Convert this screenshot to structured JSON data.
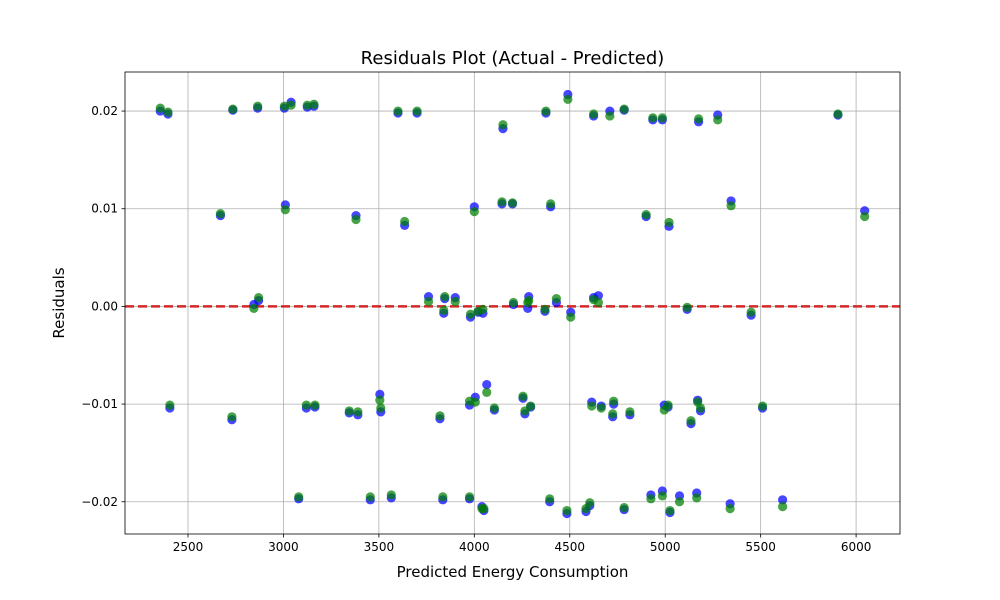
{
  "chart_data": {
    "type": "scatter",
    "title": "Residuals Plot (Actual - Predicted)",
    "xlabel": "Predicted Energy Consumption",
    "ylabel": "Residuals",
    "xlim": [
      2170,
      6230
    ],
    "ylim": [
      -0.0233,
      0.024
    ],
    "xticks": [
      2500,
      3000,
      3500,
      4000,
      4500,
      5000,
      5500,
      6000
    ],
    "xtick_labels": [
      "2500",
      "3000",
      "3500",
      "4000",
      "4500",
      "5000",
      "5500",
      "6000"
    ],
    "yticks": [
      -0.02,
      -0.01,
      0.0,
      0.01,
      0.02
    ],
    "ytick_labels": [
      "−0.02",
      "−0.01",
      "0.00",
      "0.01",
      "0.02"
    ],
    "grid": true,
    "reference_line": {
      "y": 0,
      "color": "#d62728",
      "style": "dashed"
    },
    "series": [
      {
        "color": "#0000ff",
        "points": [
          [
            2355,
            0.02
          ],
          [
            2395,
            0.0197
          ],
          [
            2735,
            0.0201
          ],
          [
            2865,
            0.0203
          ],
          [
            3005,
            0.0203
          ],
          [
            3040,
            0.0209
          ],
          [
            3125,
            0.0204
          ],
          [
            3160,
            0.0205
          ],
          [
            3600,
            0.0198
          ],
          [
            3700,
            0.0198
          ],
          [
            4150,
            0.0182
          ],
          [
            4375,
            0.0198
          ],
          [
            4490,
            0.0217
          ],
          [
            4625,
            0.0195
          ],
          [
            4710,
            0.02
          ],
          [
            4785,
            0.0201
          ],
          [
            4935,
            0.0191
          ],
          [
            4985,
            0.0191
          ],
          [
            5175,
            0.0189
          ],
          [
            5275,
            0.0196
          ],
          [
            5905,
            0.0196
          ],
          [
            2670,
            0.0093
          ],
          [
            3010,
            0.0104
          ],
          [
            3380,
            0.0093
          ],
          [
            3635,
            0.0083
          ],
          [
            4000,
            0.0102
          ],
          [
            4145,
            0.0105
          ],
          [
            4200,
            0.0105
          ],
          [
            4400,
            0.0102
          ],
          [
            4900,
            0.0092
          ],
          [
            5020,
            0.0082
          ],
          [
            5345,
            0.0108
          ],
          [
            6045,
            0.0098
          ],
          [
            2845,
            0.0002
          ],
          [
            2870,
            0.0006
          ],
          [
            3760,
            0.001
          ],
          [
            3840,
            -0.0007
          ],
          [
            3845,
            0.0008
          ],
          [
            3900,
            0.0009
          ],
          [
            3980,
            -0.0011
          ],
          [
            4020,
            -0.0006
          ],
          [
            4045,
            -0.0007
          ],
          [
            4205,
            0.0002
          ],
          [
            4280,
            -0.0002
          ],
          [
            4285,
            0.001
          ],
          [
            4370,
            -0.0005
          ],
          [
            4430,
            0.0004
          ],
          [
            4505,
            -0.0006
          ],
          [
            4625,
            0.0009
          ],
          [
            4650,
            0.0011
          ],
          [
            5115,
            -0.0003
          ],
          [
            5450,
            -0.0009
          ],
          [
            2405,
            -0.0104
          ],
          [
            2730,
            -0.0116
          ],
          [
            3120,
            -0.0104
          ],
          [
            3165,
            -0.0103
          ],
          [
            3345,
            -0.0109
          ],
          [
            3390,
            -0.0111
          ],
          [
            3505,
            -0.009
          ],
          [
            3510,
            -0.0108
          ],
          [
            3820,
            -0.0115
          ],
          [
            3975,
            -0.0101
          ],
          [
            4005,
            -0.0093
          ],
          [
            4065,
            -0.008
          ],
          [
            4105,
            -0.0106
          ],
          [
            4255,
            -0.0094
          ],
          [
            4265,
            -0.011
          ],
          [
            4295,
            -0.0103
          ],
          [
            4615,
            -0.0098
          ],
          [
            4665,
            -0.0102
          ],
          [
            4725,
            -0.0113
          ],
          [
            4730,
            -0.01
          ],
          [
            4815,
            -0.0111
          ],
          [
            4995,
            -0.0101
          ],
          [
            5015,
            -0.0103
          ],
          [
            5135,
            -0.012
          ],
          [
            5170,
            -0.0096
          ],
          [
            5185,
            -0.0107
          ],
          [
            5510,
            -0.0104
          ],
          [
            3080,
            -0.0197
          ],
          [
            3455,
            -0.0198
          ],
          [
            3565,
            -0.0196
          ],
          [
            3835,
            -0.0198
          ],
          [
            3975,
            -0.0197
          ],
          [
            4040,
            -0.0205
          ],
          [
            4050,
            -0.0209
          ],
          [
            4395,
            -0.02
          ],
          [
            4485,
            -0.0212
          ],
          [
            4585,
            -0.021
          ],
          [
            4605,
            -0.0204
          ],
          [
            4785,
            -0.0208
          ],
          [
            4925,
            -0.0193
          ],
          [
            4985,
            -0.0189
          ],
          [
            5025,
            -0.0211
          ],
          [
            5075,
            -0.0194
          ],
          [
            5165,
            -0.0191
          ],
          [
            5340,
            -0.0202
          ],
          [
            5615,
            -0.0198
          ]
        ]
      },
      {
        "color": "#008000",
        "points": [
          [
            2355,
            0.0203
          ],
          [
            2395,
            0.0199
          ],
          [
            2735,
            0.0202
          ],
          [
            2865,
            0.0205
          ],
          [
            3005,
            0.0205
          ],
          [
            3040,
            0.0206
          ],
          [
            3125,
            0.0206
          ],
          [
            3160,
            0.0207
          ],
          [
            3600,
            0.02
          ],
          [
            3700,
            0.02
          ],
          [
            4150,
            0.0186
          ],
          [
            4375,
            0.02
          ],
          [
            4490,
            0.0212
          ],
          [
            4625,
            0.0197
          ],
          [
            4710,
            0.0195
          ],
          [
            4785,
            0.0202
          ],
          [
            4935,
            0.0193
          ],
          [
            4985,
            0.0193
          ],
          [
            5175,
            0.0192
          ],
          [
            5275,
            0.0191
          ],
          [
            5905,
            0.0197
          ],
          [
            2670,
            0.0095
          ],
          [
            3010,
            0.0099
          ],
          [
            3380,
            0.0089
          ],
          [
            3635,
            0.0087
          ],
          [
            4000,
            0.0097
          ],
          [
            4145,
            0.0107
          ],
          [
            4200,
            0.0106
          ],
          [
            4400,
            0.0105
          ],
          [
            4900,
            0.0094
          ],
          [
            5020,
            0.0086
          ],
          [
            5345,
            0.0103
          ],
          [
            6045,
            0.0092
          ],
          [
            2845,
            -0.0002
          ],
          [
            2870,
            0.0009
          ],
          [
            3760,
            0.0005
          ],
          [
            3840,
            -0.0004
          ],
          [
            3845,
            0.001
          ],
          [
            3900,
            0.0005
          ],
          [
            3980,
            -0.0008
          ],
          [
            4020,
            -0.0005
          ],
          [
            4045,
            -0.0003
          ],
          [
            4205,
            0.0004
          ],
          [
            4280,
            0.0004
          ],
          [
            4285,
            0.0006
          ],
          [
            4370,
            -0.0003
          ],
          [
            4430,
            0.0008
          ],
          [
            4505,
            -0.0011
          ],
          [
            4625,
            0.0007
          ],
          [
            4650,
            0.0004
          ],
          [
            5115,
            -0.0001
          ],
          [
            5450,
            -0.0006
          ],
          [
            2405,
            -0.0101
          ],
          [
            2730,
            -0.0113
          ],
          [
            3120,
            -0.0101
          ],
          [
            3165,
            -0.0101
          ],
          [
            3345,
            -0.0107
          ],
          [
            3390,
            -0.0108
          ],
          [
            3505,
            -0.0096
          ],
          [
            3510,
            -0.0104
          ],
          [
            3820,
            -0.0112
          ],
          [
            3975,
            -0.0097
          ],
          [
            4005,
            -0.0098
          ],
          [
            4065,
            -0.0088
          ],
          [
            4105,
            -0.0104
          ],
          [
            4255,
            -0.0092
          ],
          [
            4265,
            -0.0107
          ],
          [
            4295,
            -0.0102
          ],
          [
            4615,
            -0.0102
          ],
          [
            4665,
            -0.0104
          ],
          [
            4725,
            -0.011
          ],
          [
            4730,
            -0.0097
          ],
          [
            4815,
            -0.0108
          ],
          [
            4995,
            -0.0106
          ],
          [
            5015,
            -0.0101
          ],
          [
            5135,
            -0.0117
          ],
          [
            5170,
            -0.0098
          ],
          [
            5185,
            -0.0104
          ],
          [
            5510,
            -0.0102
          ],
          [
            3080,
            -0.0195
          ],
          [
            3455,
            -0.0195
          ],
          [
            3565,
            -0.0193
          ],
          [
            3835,
            -0.0195
          ],
          [
            3975,
            -0.0195
          ],
          [
            4040,
            -0.0207
          ],
          [
            4050,
            -0.0207
          ],
          [
            4395,
            -0.0197
          ],
          [
            4485,
            -0.0209
          ],
          [
            4585,
            -0.0207
          ],
          [
            4605,
            -0.0201
          ],
          [
            4785,
            -0.0206
          ],
          [
            4925,
            -0.0197
          ],
          [
            4985,
            -0.0194
          ],
          [
            5025,
            -0.0209
          ],
          [
            5075,
            -0.02
          ],
          [
            5165,
            -0.0196
          ],
          [
            5340,
            -0.0207
          ],
          [
            5615,
            -0.0205
          ]
        ]
      }
    ]
  }
}
